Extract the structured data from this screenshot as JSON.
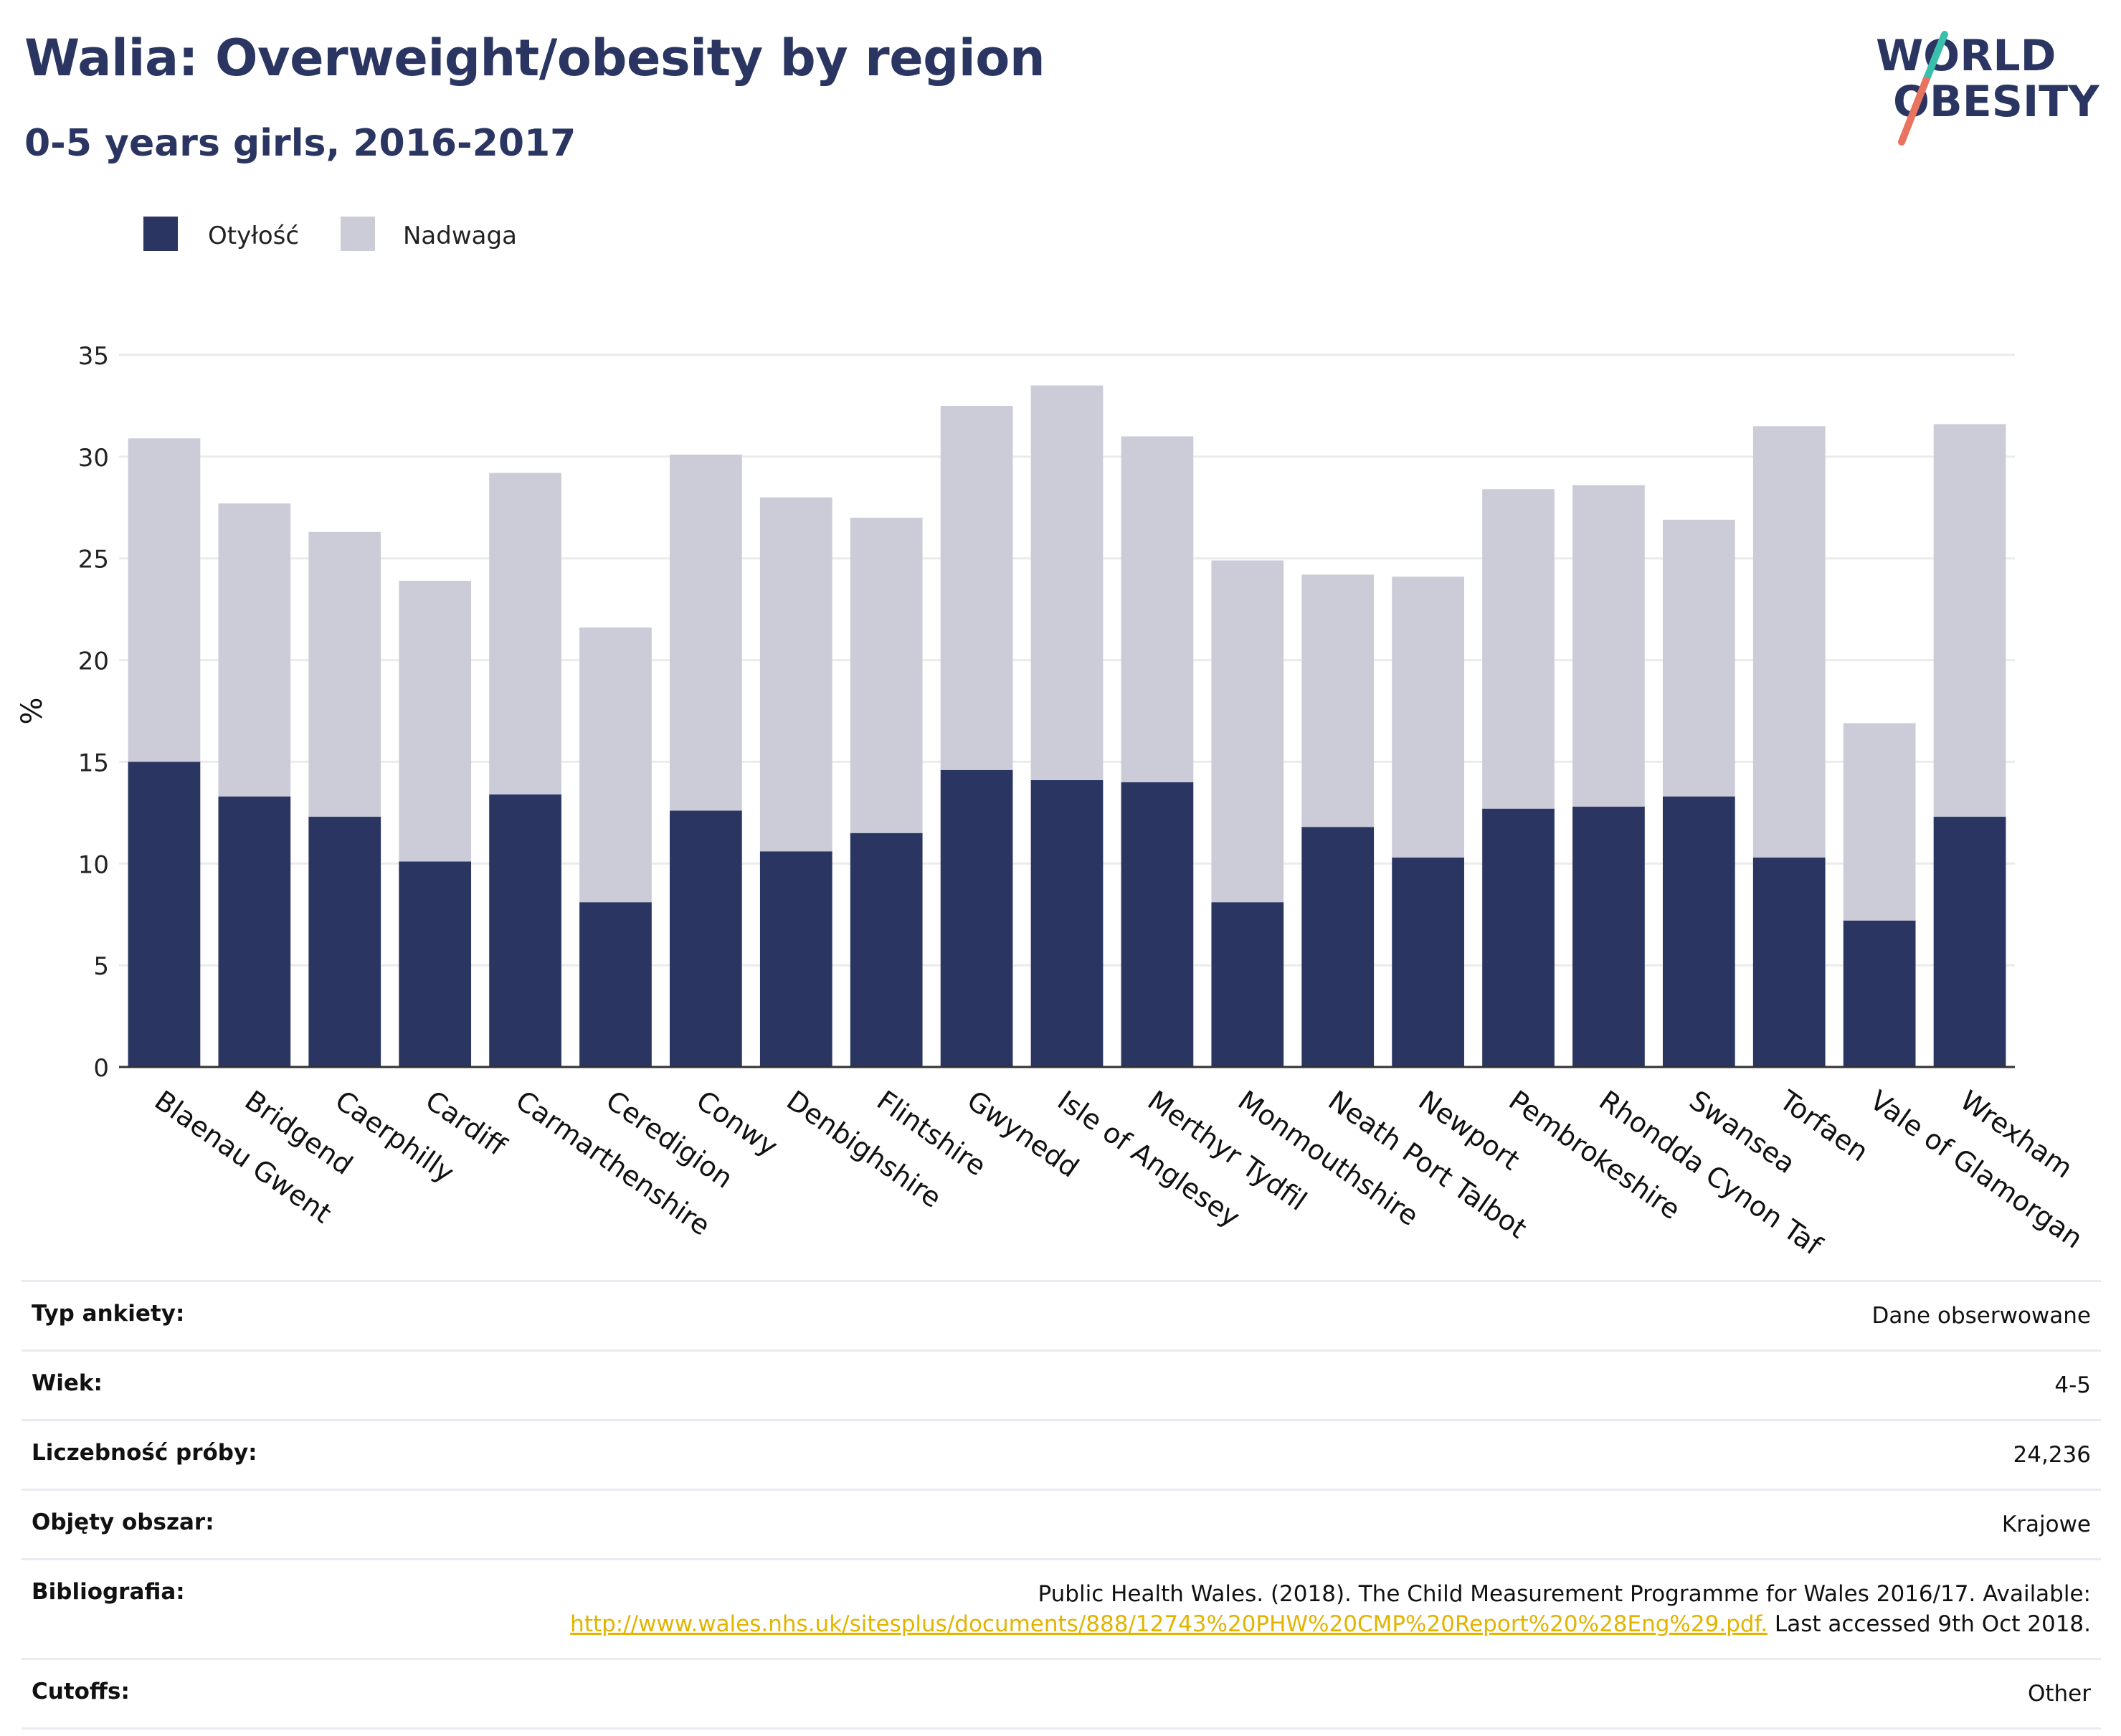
{
  "header": {
    "title": "Walia: Overweight/obesity by region",
    "subtitle": "0-5 years girls, 2016-2017"
  },
  "logo": {
    "line1": "WORLD",
    "line2": "OBESITY",
    "icon": "world-obesity-slash-logo"
  },
  "colors": {
    "obesity": "#2a3562",
    "overweight": "#cbccd7",
    "link": "#e2b400",
    "grid": "#ebebeb"
  },
  "chart_data": {
    "type": "bar",
    "stacked": true,
    "title": "",
    "xlabel": "",
    "ylabel": "%",
    "ylim": [
      0,
      35
    ],
    "yticks": [
      0,
      5,
      10,
      15,
      20,
      25,
      30,
      35
    ],
    "grid": true,
    "legend_position": "top-left",
    "categories": [
      "Blaenau Gwent",
      "Bridgend",
      "Caerphilly",
      "Cardiff",
      "Carmarthenshire",
      "Ceredigion",
      "Conwy",
      "Denbighshire",
      "Flintshire",
      "Gwynedd",
      "Isle of Anglesey",
      "Merthyr Tydfil",
      "Monmouthshire",
      "Neath Port Talbot",
      "Newport",
      "Pembrokeshire",
      "Rhondda Cynon Taf",
      "Swansea",
      "Torfaen",
      "Vale of Glamorgan",
      "Wrexham"
    ],
    "series": [
      {
        "name": "Otyłość",
        "values": [
          15.0,
          13.3,
          12.3,
          10.1,
          13.4,
          8.1,
          12.6,
          10.6,
          11.5,
          14.6,
          14.1,
          14.0,
          8.1,
          11.8,
          10.3,
          12.7,
          12.8,
          13.3,
          10.3,
          7.2,
          12.3
        ]
      },
      {
        "name": "Nadwaga",
        "values": [
          15.9,
          14.4,
          14.0,
          13.8,
          15.8,
          13.5,
          17.5,
          17.4,
          15.5,
          17.9,
          19.4,
          17.0,
          16.8,
          12.4,
          13.8,
          15.7,
          15.8,
          13.6,
          21.2,
          9.7,
          19.3
        ]
      }
    ]
  },
  "info": {
    "survey_type_label": "Typ ankiety:",
    "survey_type_value": "Dane obserwowane",
    "age_label": "Wiek:",
    "age_value": "4-5",
    "sample_label": "Liczebność próby:",
    "sample_value": "24,236",
    "area_label": "Objęty obszar:",
    "area_value": "Krajowe",
    "bib_label": "Bibliografia:",
    "bib_text_1": "Public Health Wales. (2018). The Child Measurement Programme for Wales 2016/17. Available:",
    "bib_link": "http://www.wales.nhs.uk/sitesplus/documents/888/12743%20PHW%20CMP%20Report%20%28Eng%29.pdf.",
    "bib_text_2": "Last accessed 9th Oct 2018.",
    "cutoffs_label": "Cutoffs:",
    "cutoffs_value": "Other"
  }
}
